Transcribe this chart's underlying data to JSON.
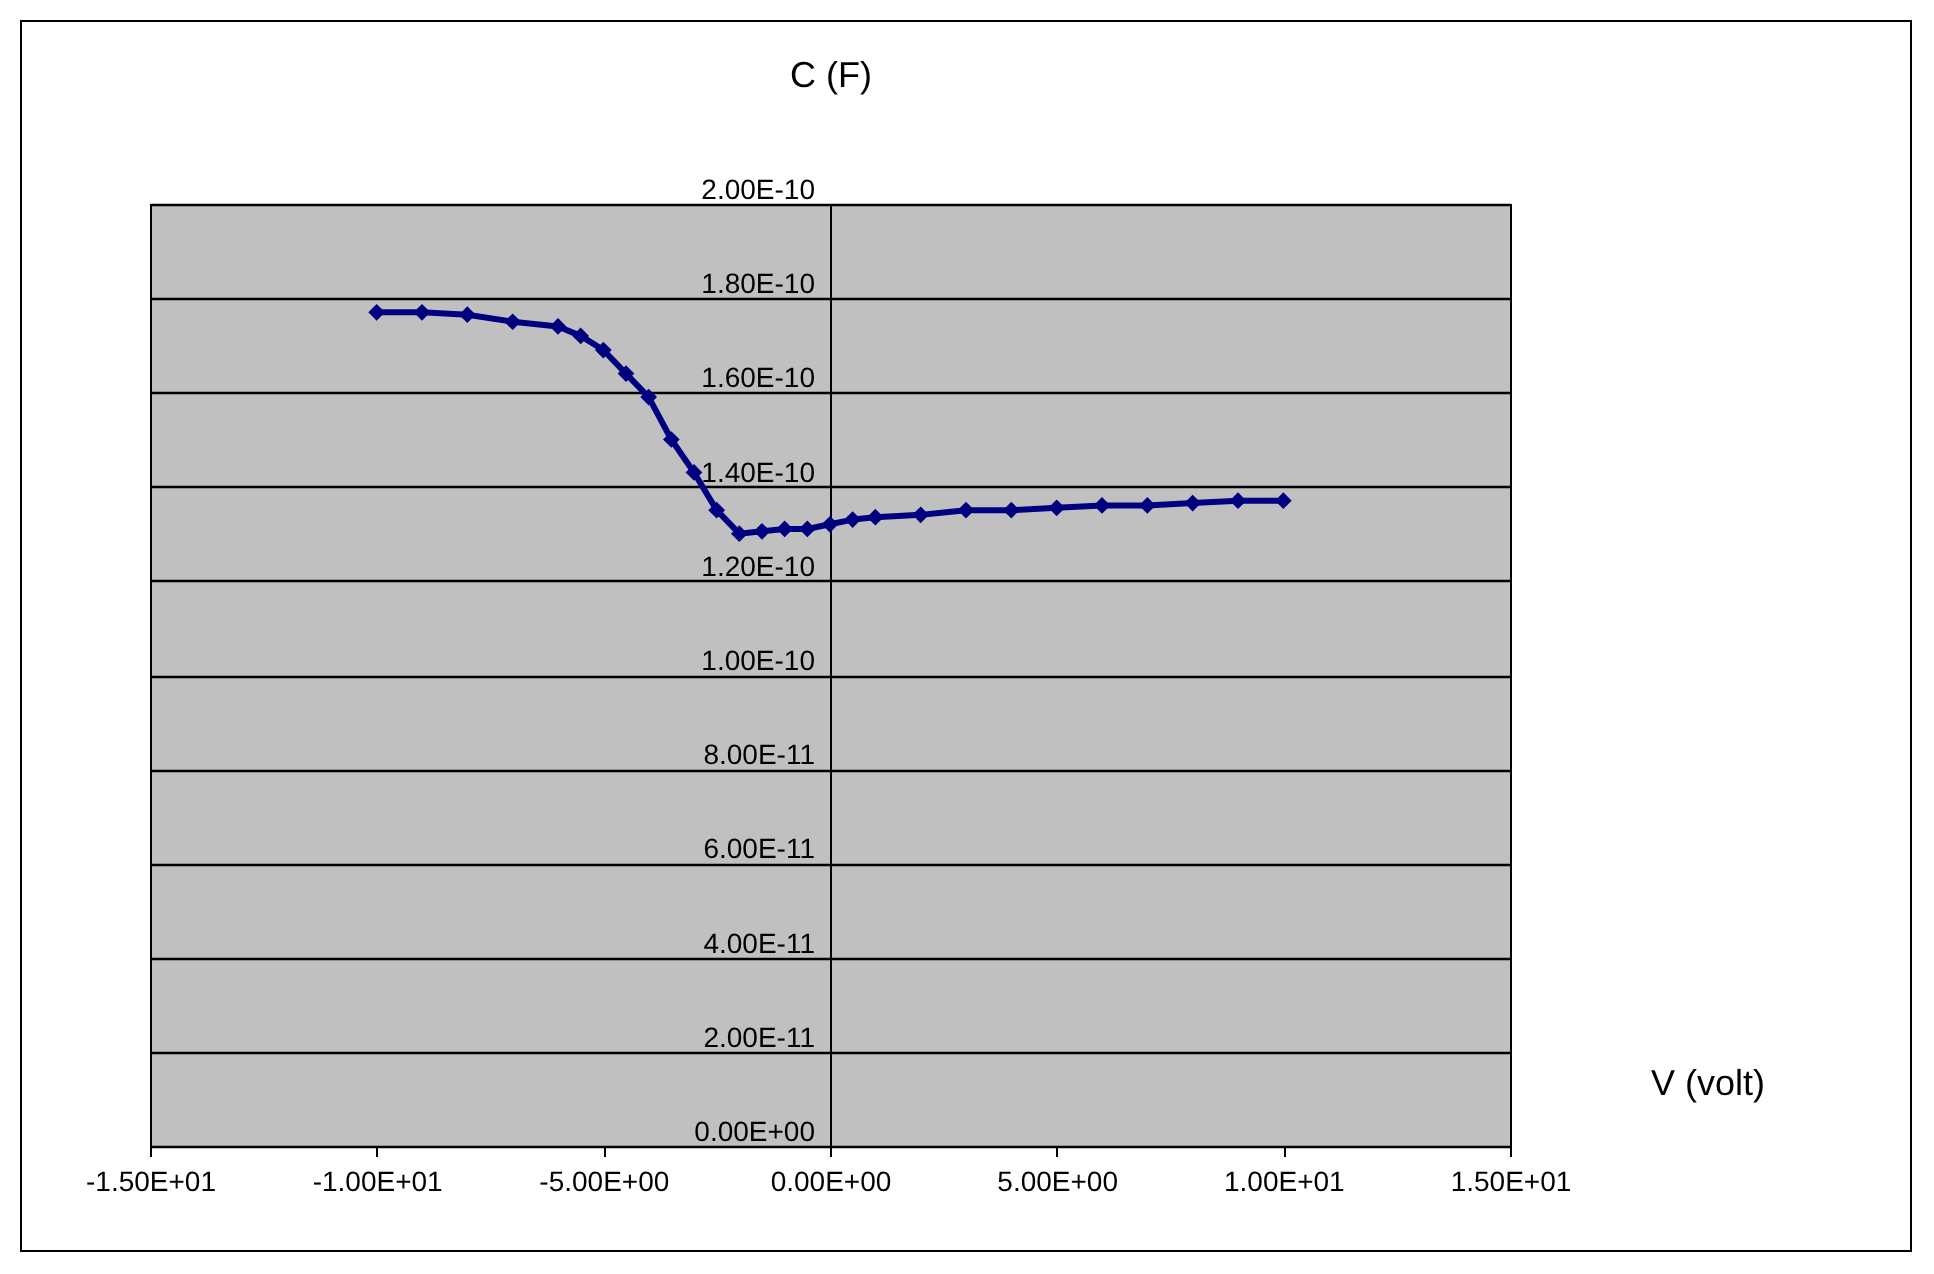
{
  "chart_data": {
    "type": "line",
    "xlabel": "V (volt)",
    "ylabel": "C (F)",
    "marker": "diamond",
    "grid": "y",
    "xlim": [
      -15,
      15
    ],
    "ylim": [
      0,
      2e-10
    ],
    "xticks": [
      {
        "value": -15,
        "label": "-1.50E+01"
      },
      {
        "value": -10,
        "label": "-1.00E+01"
      },
      {
        "value": -5,
        "label": "-5.00E+00"
      },
      {
        "value": 0,
        "label": "0.00E+00"
      },
      {
        "value": 5,
        "label": "5.00E+00"
      },
      {
        "value": 10,
        "label": "1.00E+01"
      },
      {
        "value": 15,
        "label": "1.50E+01"
      }
    ],
    "yticks": [
      {
        "value": 0,
        "label": "0.00E+00"
      },
      {
        "value": 2e-11,
        "label": "2.00E-11"
      },
      {
        "value": 4e-11,
        "label": "4.00E-11"
      },
      {
        "value": 6e-11,
        "label": "6.00E-11"
      },
      {
        "value": 8e-11,
        "label": "8.00E-11"
      },
      {
        "value": 1e-10,
        "label": "1.00E-10"
      },
      {
        "value": 1.2e-10,
        "label": "1.20E-10"
      },
      {
        "value": 1.4e-10,
        "label": "1.40E-10"
      },
      {
        "value": 1.6e-10,
        "label": "1.60E-10"
      },
      {
        "value": 1.8e-10,
        "label": "1.80E-10"
      },
      {
        "value": 2e-10,
        "label": "2.00E-10"
      }
    ],
    "x": [
      -10,
      -9,
      -8,
      -7,
      -6,
      -5.5,
      -5,
      -4.5,
      -4,
      -3.5,
      -3,
      -2.5,
      -2,
      -1.5,
      -1,
      -0.5,
      0,
      0.5,
      1,
      2,
      3,
      4,
      5,
      6,
      7,
      8,
      9,
      10
    ],
    "series": [
      {
        "color": "#000080",
        "values": [
          1.77e-10,
          1.77e-10,
          1.765e-10,
          1.75e-10,
          1.74e-10,
          1.72e-10,
          1.69e-10,
          1.64e-10,
          1.59e-10,
          1.5e-10,
          1.43e-10,
          1.35e-10,
          1.3e-10,
          1.305e-10,
          1.31e-10,
          1.31e-10,
          1.32e-10,
          1.33e-10,
          1.335e-10,
          1.34e-10,
          1.35e-10,
          1.35e-10,
          1.355e-10,
          1.36e-10,
          1.36e-10,
          1.365e-10,
          1.37e-10,
          1.37e-10
        ]
      }
    ]
  }
}
